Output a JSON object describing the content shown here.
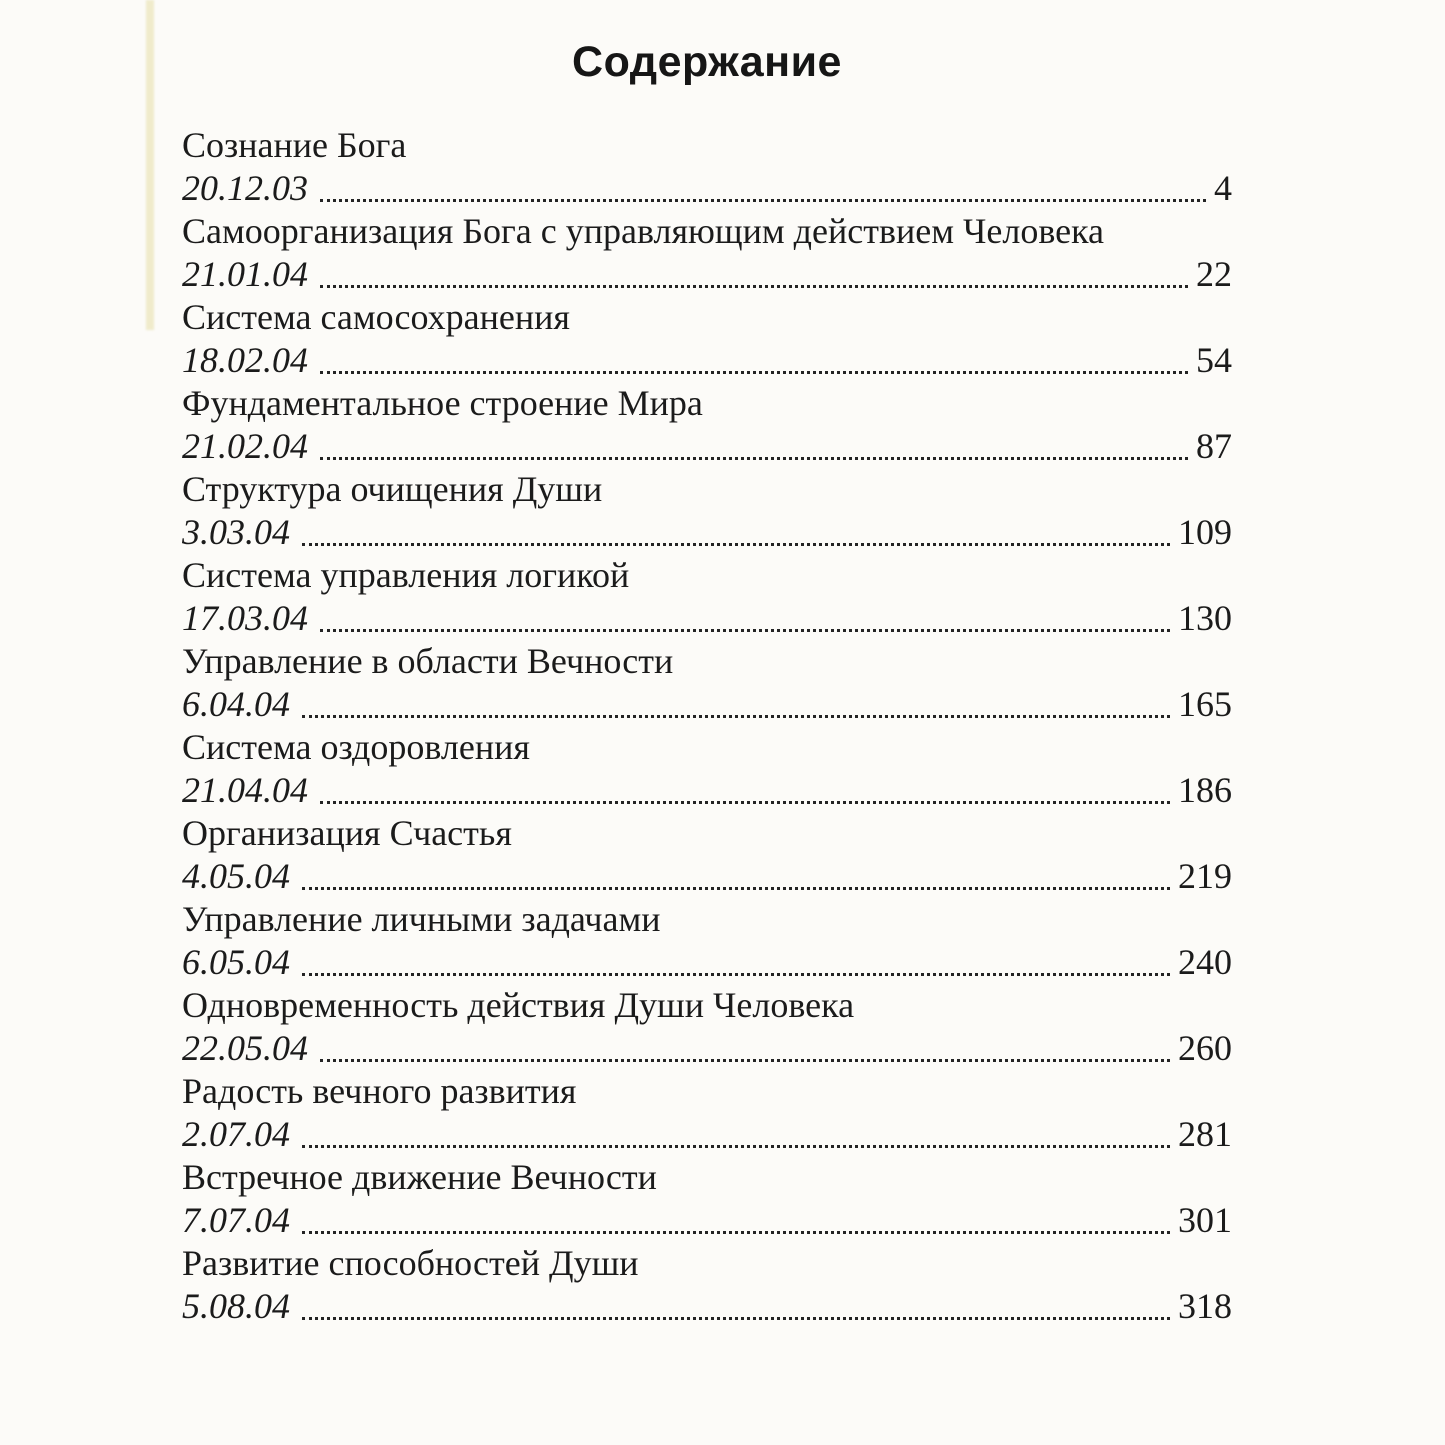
{
  "page": {
    "title": "Содержание",
    "colors": {
      "background": "#fcfbf8",
      "text": "#1b1b1b"
    },
    "entries": [
      {
        "title": "Сознание Бога",
        "date": "20.12.03",
        "page": "4"
      },
      {
        "title": "Самоорганизация Бога с управляющим действием Человека",
        "date": "21.01.04",
        "page": "22"
      },
      {
        "title": "Система самосохранения",
        "date": "18.02.04",
        "page": "54"
      },
      {
        "title": "Фундаментальное строение Мира",
        "date": "21.02.04",
        "page": "87"
      },
      {
        "title": "Структура очищения Души",
        "date": "3.03.04",
        "page": "109"
      },
      {
        "title": "Система управления логикой",
        "date": "17.03.04",
        "page": "130"
      },
      {
        "title": "Управление в области Вечности",
        "date": "6.04.04",
        "page": "165"
      },
      {
        "title": "Система оздоровления",
        "date": "21.04.04",
        "page": "186"
      },
      {
        "title": "Организация Счастья",
        "date": "4.05.04",
        "page": "219"
      },
      {
        "title": "Управление личными задачами",
        "date": "6.05.04",
        "page": "240"
      },
      {
        "title": "Одновременность действия Души Человека",
        "date": "22.05.04",
        "page": "260"
      },
      {
        "title": "Радость вечного развития",
        "date": "2.07.04",
        "page": "281"
      },
      {
        "title": "Встречное движение Вечности",
        "date": "7.07.04",
        "page": "301"
      },
      {
        "title": "Развитие способностей Души",
        "date": "5.08.04",
        "page": "318"
      }
    ]
  }
}
